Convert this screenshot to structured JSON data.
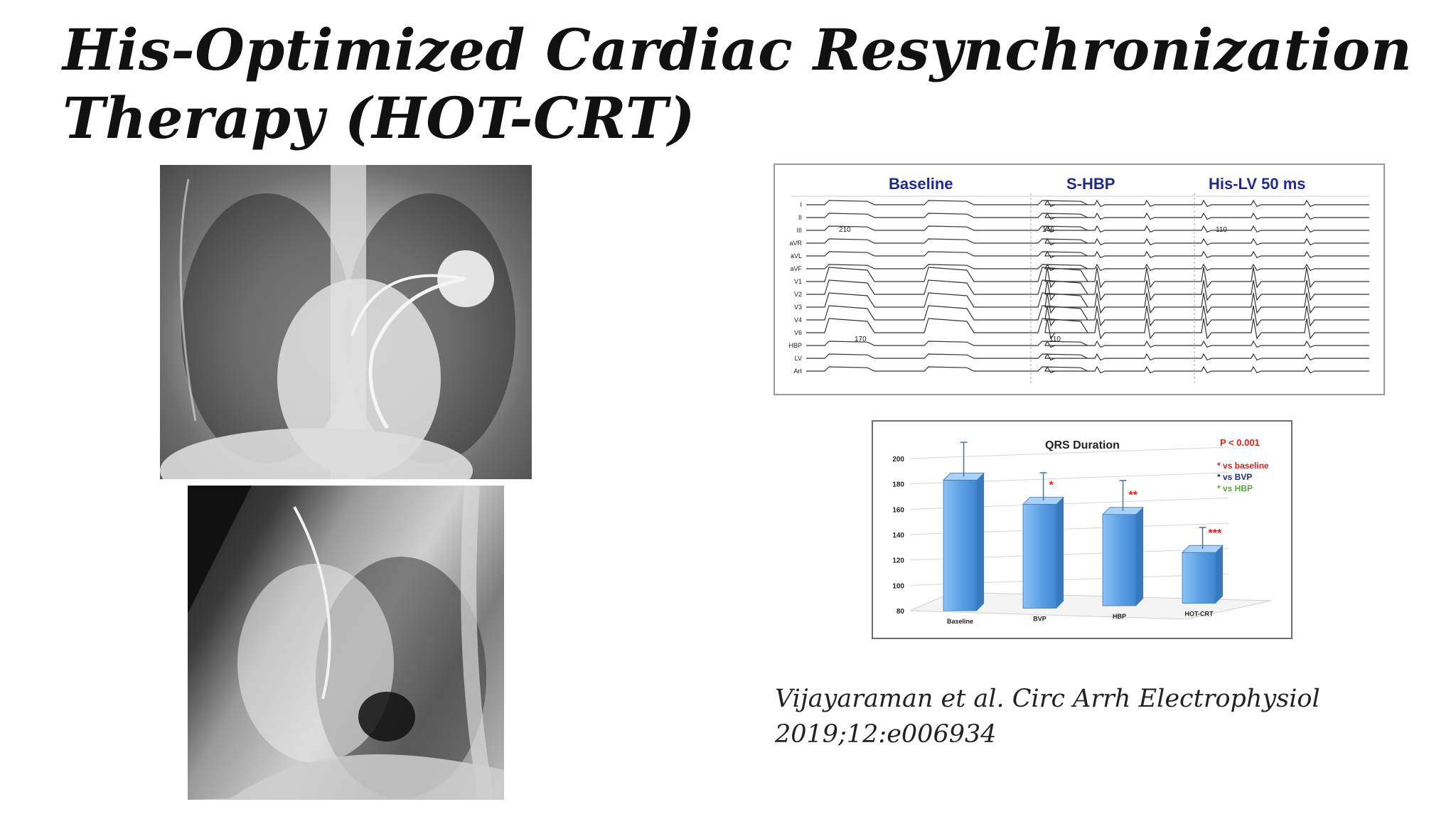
{
  "slide": {
    "title": "His-Optimized Cardiac Resynchronization Therapy (HOT-CRT)",
    "citation_line1": "Vijayaraman et al. Circ Arrh Electrophysiol",
    "citation_line2": "2019;12:e006934"
  },
  "ecg": {
    "section_labels": [
      "Baseline",
      "S-HBP",
      "His-LV 50 ms"
    ],
    "lead_labels": [
      "I",
      "II",
      "III",
      "aVR",
      "aVL",
      "aVF",
      "V1",
      "V2",
      "V3",
      "V4",
      "V6",
      "HBP",
      "LV",
      "Art"
    ],
    "interval_labels": [
      "210",
      "146",
      "110",
      "170",
      "110"
    ],
    "colors": {
      "title": "#1f2a8c",
      "trace": "#222222"
    }
  },
  "chart_data": {
    "type": "bar",
    "title": "QRS Duration",
    "categories": [
      "Baseline",
      "BVP",
      "HBP",
      "HOT-CRT"
    ],
    "series": [
      {
        "values": [
          183,
          162,
          152,
          120
        ]
      }
    ],
    "error_upper": [
      210,
      184,
      176,
      137
    ],
    "ylim": [
      80,
      200
    ],
    "yticks": [
      80,
      100,
      120,
      140,
      160,
      180,
      200
    ],
    "significance_marks": [
      "",
      "*",
      "**",
      "***"
    ],
    "annotations": {
      "p_value": "P < 0.001",
      "legend": [
        "* vs baseline",
        "* vs BVP",
        "* vs HBP"
      ],
      "legend_colors": [
        "#e0201e",
        "#1f2a8c",
        "#5aa544"
      ]
    },
    "grid": true,
    "bar_color": "#5fa2e6"
  }
}
